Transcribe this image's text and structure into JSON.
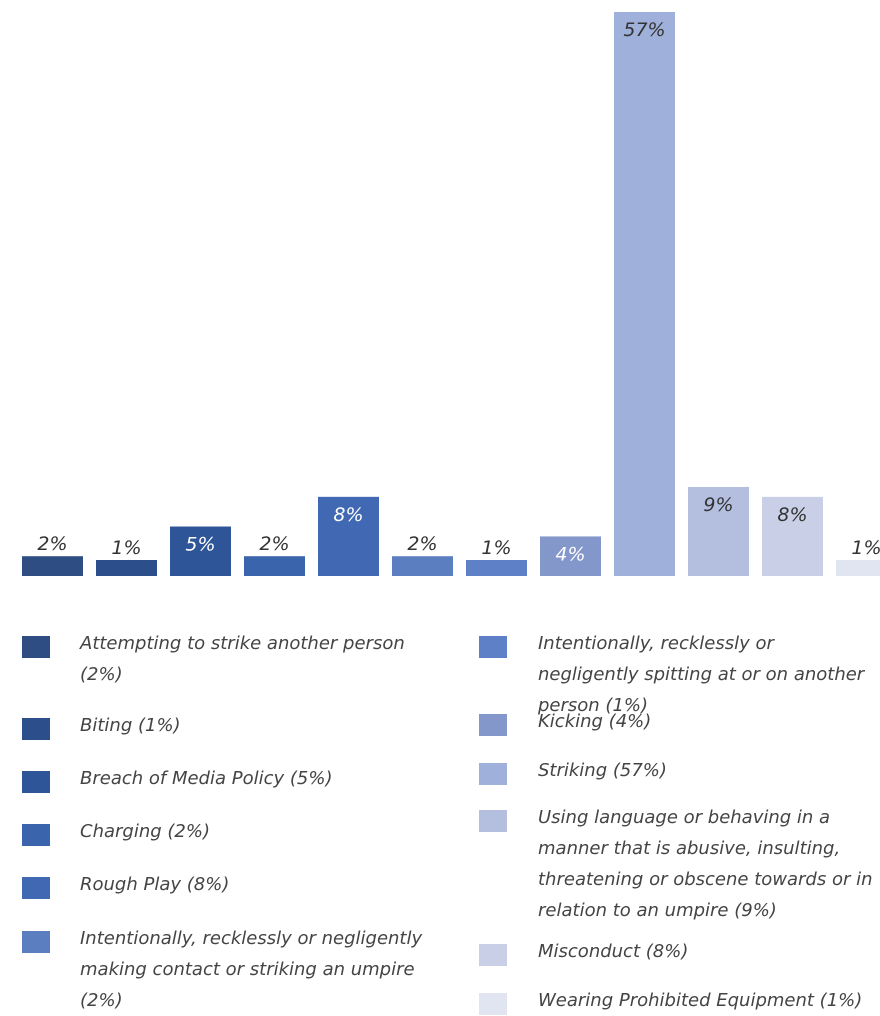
{
  "chart_data": {
    "type": "bar",
    "categories": [
      "Attempting to strike another person",
      "Biting",
      "Breach of Media Policy",
      "Charging",
      "Rough Play",
      "Intentionally, recklessly or negligently making contact or striking an umpire",
      "Intentionally, recklessly or negligently spitting at or on another person",
      "Kicking",
      "Striking",
      "Using language or behaving in a manner that is abusive, insulting, threatening or obscene towards or in relation to an umpire",
      "Misconduct",
      "Wearing Prohibited Equipment"
    ],
    "values": [
      2,
      1,
      5,
      2,
      8,
      2,
      1,
      4,
      57,
      9,
      8,
      1
    ],
    "data_labels": [
      "2%",
      "1%",
      "5%",
      "2%",
      "8%",
      "2%",
      "1%",
      "4%",
      "57%",
      "9%",
      "8%",
      "1%"
    ],
    "colors": [
      "#2e4e83",
      "#2c4f8b",
      "#2e5597",
      "#3a64ab",
      "#4169b3",
      "#5b7ec0",
      "#5d80c6",
      "#8397cb",
      "#9fb1da",
      "#b4bfe0",
      "#c8cfe6",
      "#e1e5f1"
    ],
    "ylim": [
      0,
      57
    ],
    "grid": false,
    "legend_position": "bottom"
  },
  "legend": {
    "left": [
      {
        "text": "Attempting to strike another person (2%)",
        "color": "#2e4e83"
      },
      {
        "text": "Biting (1%)",
        "color": "#2c4f8b"
      },
      {
        "text": "Breach of Media Policy (5%)",
        "color": "#2e5597"
      },
      {
        "text": "Charging (2%)",
        "color": "#3a64ab"
      },
      {
        "text": "Rough Play (8%)",
        "color": "#4169b3"
      },
      {
        "text": "Intentionally, recklessly or negligently making contact or striking an umpire (2%)",
        "color": "#5b7ec0"
      }
    ],
    "right": [
      {
        "text": "Intentionally, recklessly or negligently spitting at or on another person (1%)",
        "color": "#5d80c6"
      },
      {
        "text": "Kicking (4%)",
        "color": "#8397cb"
      },
      {
        "text": "Striking (57%)",
        "color": "#9fb1da"
      },
      {
        "text": "Using language or behaving in a manner that is abusive, insulting, threatening or obscene towards or in relation to an umpire (9%)",
        "color": "#b4bfe0"
      },
      {
        "text": "Misconduct (8%)",
        "color": "#c8cfe6"
      },
      {
        "text": "Wearing Prohibited Equipment (1%)",
        "color": "#e1e5f1"
      }
    ]
  }
}
